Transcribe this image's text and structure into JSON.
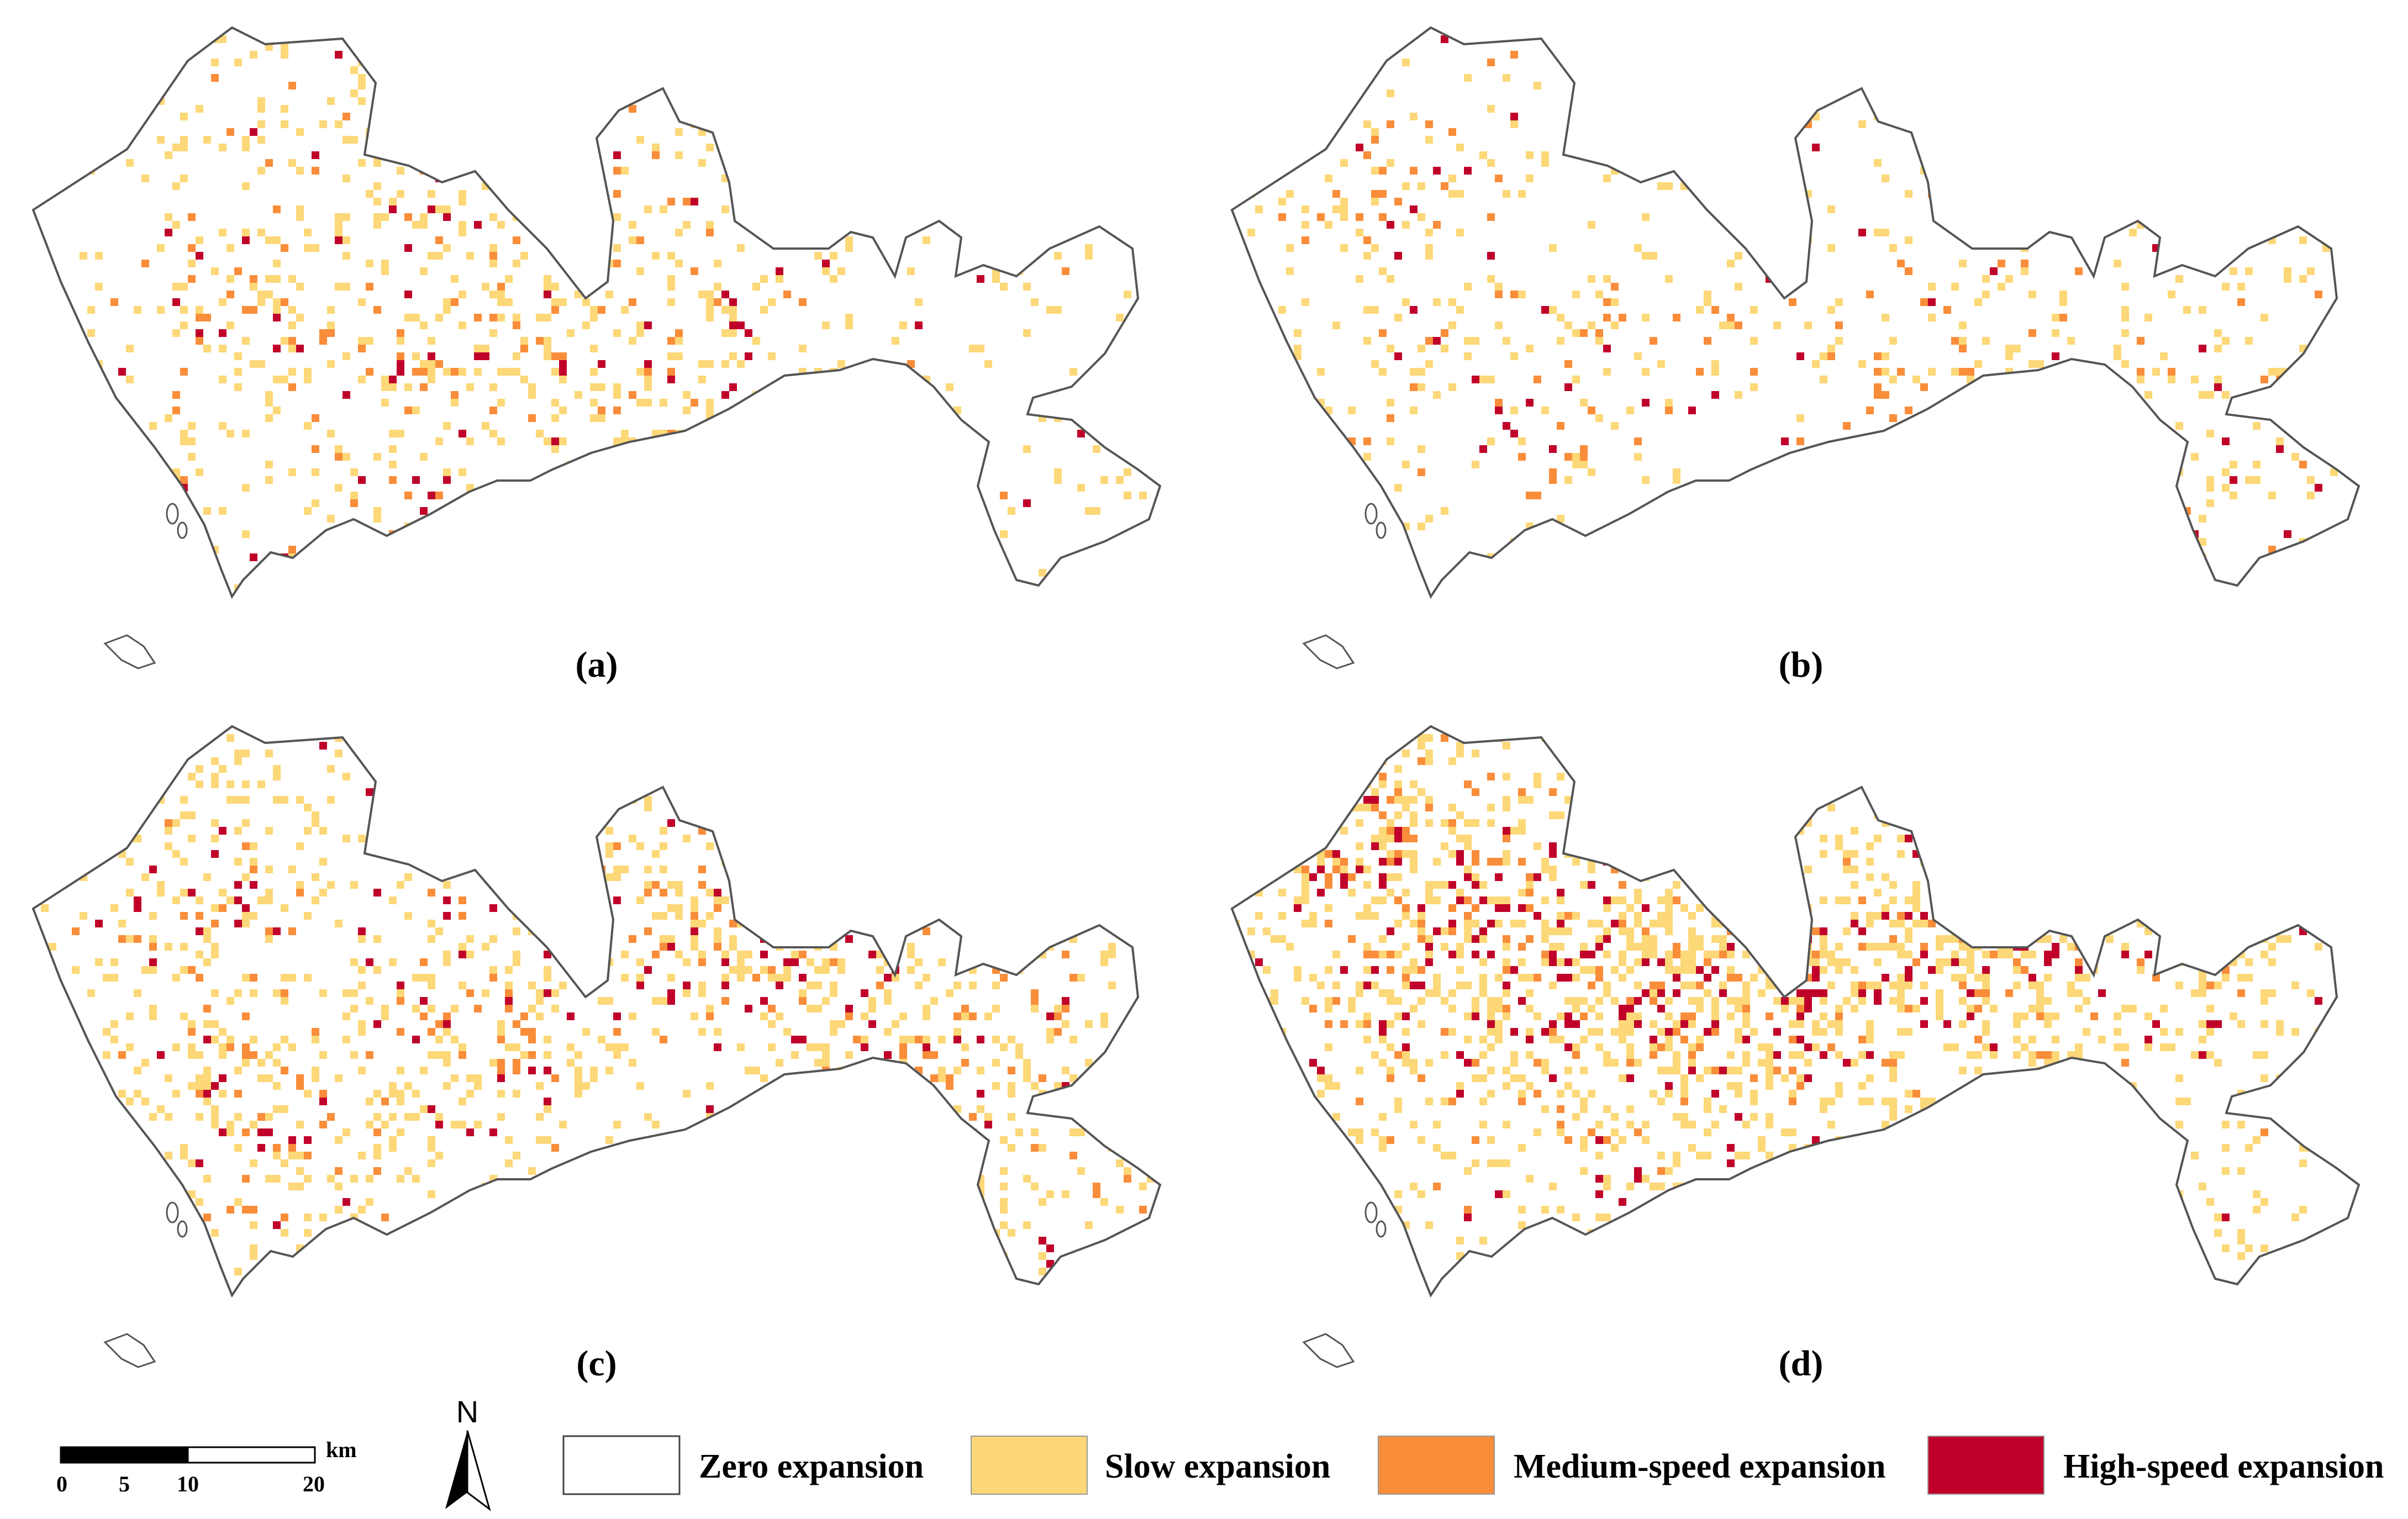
{
  "panels": [
    {
      "label": "(a)",
      "seed": 11,
      "density": 0.35,
      "hotspots": [
        [
          0.22,
          0.55
        ],
        [
          0.32,
          0.62
        ],
        [
          0.45,
          0.58
        ],
        [
          0.38,
          0.35
        ],
        [
          0.3,
          0.22
        ],
        [
          0.5,
          0.4
        ],
        [
          0.58,
          0.62
        ]
      ]
    },
    {
      "label": "(b)",
      "seed": 23,
      "density": 0.22,
      "hotspots": [
        [
          0.12,
          0.3
        ],
        [
          0.18,
          0.55
        ],
        [
          0.28,
          0.7
        ],
        [
          0.35,
          0.62
        ],
        [
          0.6,
          0.62
        ],
        [
          0.72,
          0.58
        ],
        [
          0.85,
          0.6
        ],
        [
          0.9,
          0.8
        ]
      ]
    },
    {
      "label": "(c)",
      "seed": 37,
      "density": 0.45,
      "hotspots": [
        [
          0.15,
          0.35
        ],
        [
          0.2,
          0.7
        ],
        [
          0.35,
          0.55
        ],
        [
          0.42,
          0.5
        ],
        [
          0.55,
          0.35
        ],
        [
          0.62,
          0.4
        ],
        [
          0.75,
          0.55
        ],
        [
          0.82,
          0.6
        ]
      ]
    },
    {
      "label": "(d)",
      "seed": 53,
      "density": 0.85,
      "hotspots": [
        [
          0.12,
          0.2
        ],
        [
          0.2,
          0.35
        ],
        [
          0.3,
          0.4
        ],
        [
          0.4,
          0.45
        ],
        [
          0.5,
          0.45
        ],
        [
          0.65,
          0.35
        ],
        [
          0.75,
          0.3
        ],
        [
          0.8,
          0.25
        ]
      ]
    }
  ],
  "legend": {
    "items": [
      {
        "label": "Zero expansion",
        "color": "#ffffff"
      },
      {
        "label": "Slow expansion",
        "color": "#fdd878"
      },
      {
        "label": "Medium-speed expansion",
        "color": "#f98d3a"
      },
      {
        "label": "High-speed expansion",
        "color": "#c0002a"
      }
    ],
    "north": "N",
    "scale": {
      "ticks": [
        "0",
        "5",
        "10",
        "20"
      ],
      "unit": "km"
    }
  },
  "colors": {
    "outline": "#555555",
    "slow": "#fdd878",
    "medium": "#f98d3a",
    "high": "#c0002a"
  }
}
